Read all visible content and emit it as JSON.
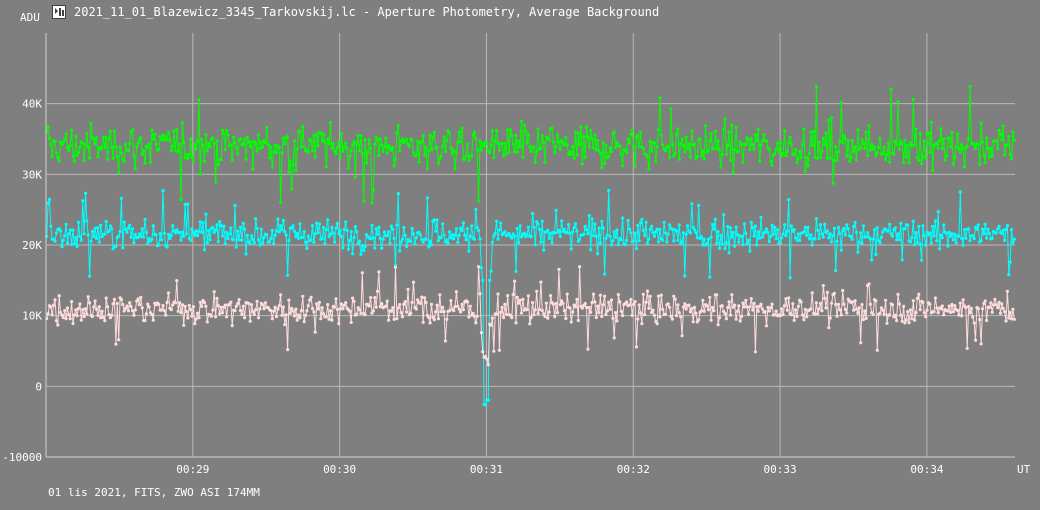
{
  "window": {
    "title": "2021_11_01_Blazewicz_3345_Tarkovskij.lc - Aperture Photometry, Average Background",
    "icon": "telescope-app-icon"
  },
  "footer": {
    "info": "01 lis 2021, FITS, ZWO ASI 174MM"
  },
  "chart_data": {
    "type": "line",
    "title": "2021_11_01_Blazewicz_3345_Tarkovskij.lc - Aperture Photometry, Average Background",
    "ylabel": "ADU",
    "xlabel": "UT",
    "ylim": [
      -10000,
      50000
    ],
    "y_ticks": [
      {
        "value": -10000,
        "label": "-10000"
      },
      {
        "value": 0,
        "label": "0"
      },
      {
        "value": 10000,
        "label": "10K"
      },
      {
        "value": 20000,
        "label": "20K"
      },
      {
        "value": 30000,
        "label": "30K"
      },
      {
        "value": 40000,
        "label": "40K"
      }
    ],
    "xlim": [
      "00:28:00",
      "00:34:36"
    ],
    "x_ticks": [
      "00:29",
      "00:30",
      "00:31",
      "00:32",
      "00:33",
      "00:34"
    ],
    "grid": true,
    "series": [
      {
        "color": "#00ff00",
        "mean": 34000,
        "spread": 3500,
        "peak_max": 45000,
        "peak_min": 26000,
        "dip_time": "00:31:00",
        "dip_value": 34000
      },
      {
        "color": "#00ffff",
        "mean": 21500,
        "spread": 2500,
        "peak_max": 29500,
        "peak_min": 15000,
        "dip_time": "00:31:00",
        "dip_value": -2500
      },
      {
        "color": "#ffdcdc",
        "mean": 11000,
        "spread": 2500,
        "peak_max": 17000,
        "peak_min": 1500,
        "dip_time": "00:31:00",
        "dip_value": 3500
      }
    ]
  }
}
